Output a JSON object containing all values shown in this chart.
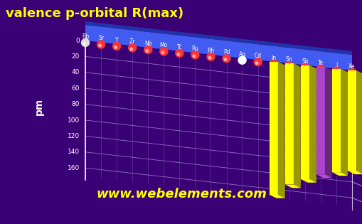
{
  "title": "valence p-orbital R(max)",
  "ylabel": "pm",
  "title_color": "#FFFF00",
  "title_fontsize": 13,
  "background_color": "#3a0075",
  "elements": [
    "Rb",
    "Sr",
    "Y",
    "Zr",
    "Nb",
    "Mo",
    "Tc",
    "Ru",
    "Rh",
    "Pd",
    "Ag",
    "Cd",
    "In",
    "Sn",
    "Sb",
    "Te",
    "I",
    "Xe"
  ],
  "values": [
    0,
    0,
    0,
    0,
    0,
    0,
    0,
    0,
    0,
    0,
    0,
    0,
    167,
    152,
    143,
    135,
    130,
    126
  ],
  "bar_colors": [
    "#ffff00",
    "#ffff00",
    "#ffff00",
    "#ffff00",
    "#aa44cc",
    "#ffff00",
    "#ffff00"
  ],
  "dot_colors": [
    "#dddddd",
    "#ff3333",
    "#ff3333",
    "#ff3333",
    "#ff3333",
    "#ff3333",
    "#ff3333",
    "#ff3333",
    "#ff3333",
    "#ff3333",
    "#ffffff",
    "#ff3333",
    "#ff3333",
    "#ff3333",
    "#ff3333",
    "#ff3333",
    "#ff3333",
    "#ff3333"
  ],
  "ylim": [
    0,
    180
  ],
  "yticks": [
    0,
    20,
    40,
    60,
    80,
    100,
    120,
    140,
    160
  ],
  "grid_color": "#aaaadd",
  "watermark": "www.webelements.com",
  "watermark_color": "#FFFF00",
  "base_color": "#4466ff",
  "axis_color": "#aaaacc"
}
